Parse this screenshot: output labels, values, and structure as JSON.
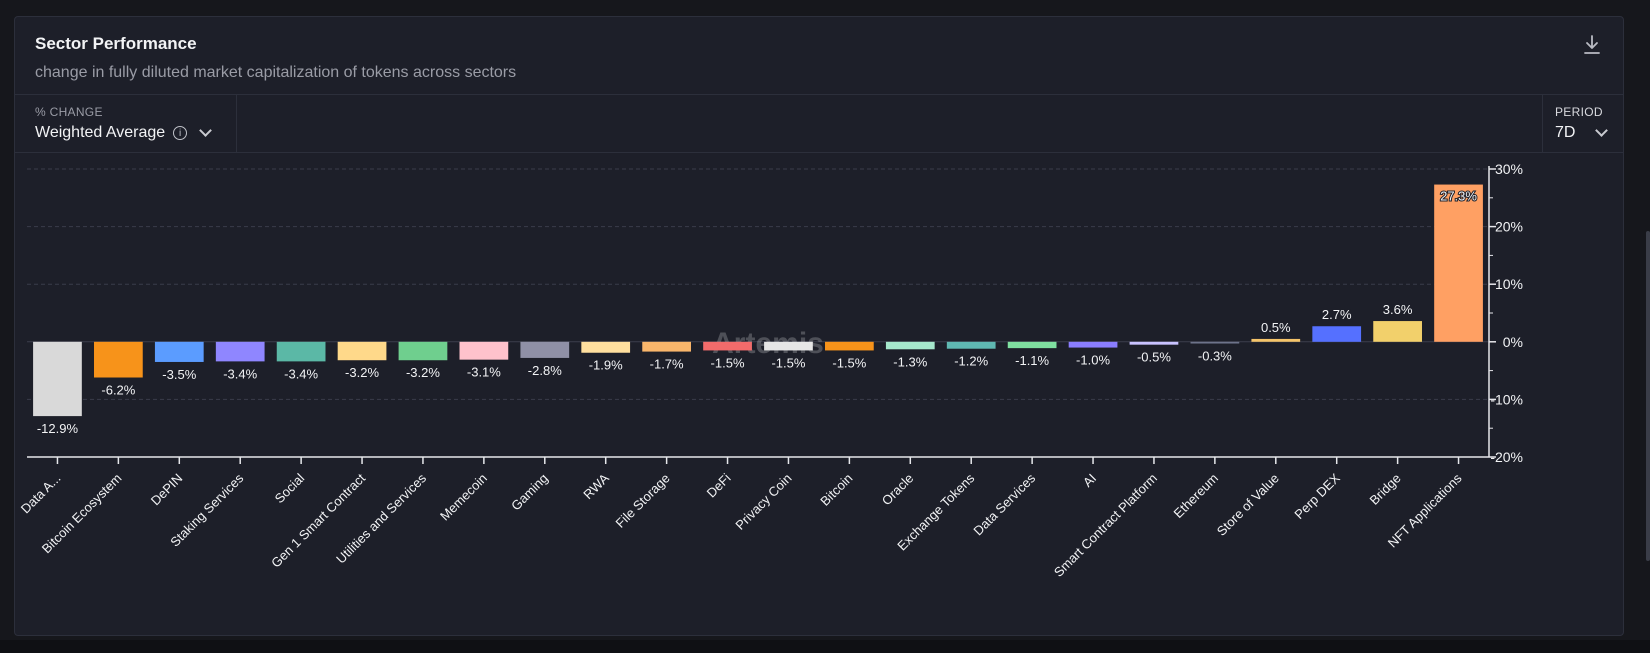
{
  "header": {
    "title": "Sector Performance",
    "subtitle": "change in fully diluted market capitalization of tokens across sectors",
    "download_icon": "download-icon"
  },
  "controls": {
    "change": {
      "label": "% CHANGE",
      "value": "Weighted Average",
      "info_icon": "info-icon"
    },
    "period": {
      "label": "PERIOD",
      "value": "7D"
    }
  },
  "watermark": "Artemis",
  "chart_data": {
    "type": "bar",
    "title": "Sector Performance",
    "xlabel": "",
    "ylabel": "",
    "ylim": [
      -20,
      30
    ],
    "yticks": [
      30,
      20,
      10,
      0,
      -10,
      -20
    ],
    "ytick_labels": [
      "30%",
      "20%",
      "10%",
      "0%",
      "-10%",
      "-20%"
    ],
    "grid": true,
    "categories": [
      "Data A...",
      "Bitcoin Ecosystem",
      "DePIN",
      "Staking Services",
      "Social",
      "Gen 1 Smart Contract",
      "Utilities and Services",
      "Memecoin",
      "Gaming",
      "RWA",
      "File Storage",
      "DeFi",
      "Privacy Coin",
      "Bitcoin",
      "Oracle",
      "Exchange Tokens",
      "Data Services",
      "AI",
      "Smart Contract Platform",
      "Ethereum",
      "Store of Value",
      "Perp DEX",
      "Bridge",
      "NFT Applications"
    ],
    "values": [
      -12.9,
      -6.2,
      -3.5,
      -3.4,
      -3.4,
      -3.2,
      -3.2,
      -3.1,
      -2.8,
      -1.9,
      -1.7,
      -1.5,
      -1.5,
      -1.5,
      -1.3,
      -1.2,
      -1.1,
      -1.0,
      -0.5,
      -0.3,
      0.5,
      2.7,
      3.6,
      27.3
    ],
    "labels": [
      "-12.9%",
      "-6.2%",
      "-3.5%",
      "-3.4%",
      "-3.4%",
      "-3.2%",
      "-3.2%",
      "-3.1%",
      "-2.8%",
      "-1.9%",
      "-1.7%",
      "-1.5%",
      "-1.5%",
      "-1.5%",
      "-1.3%",
      "-1.2%",
      "-1.1%",
      "-1.0%",
      "-0.5%",
      "-0.3%",
      "0.5%",
      "2.7%",
      "3.6%",
      "27.3%"
    ],
    "colors": [
      "#d9d9d9",
      "#f7931a",
      "#5b9cff",
      "#8f86ff",
      "#5bb8a6",
      "#ffd98a",
      "#6fcf8e",
      "#ffc2cc",
      "#8f90a6",
      "#ffdf9e",
      "#f9b66b",
      "#f26b6b",
      "#e6e6e6",
      "#f7931a",
      "#a6e8cc",
      "#5fb8b2",
      "#7fe0a0",
      "#8a7dff",
      "#c9c3ff",
      "#6d738a",
      "#f5c46a",
      "#5570ff",
      "#f2d06b",
      "#ffa063"
    ]
  }
}
